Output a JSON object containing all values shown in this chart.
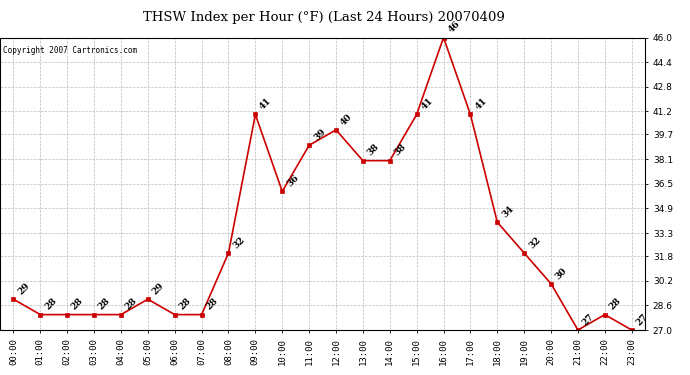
{
  "title": "THSW Index per Hour (°F) (Last 24 Hours) 20070409",
  "copyright": "Copyright 2007 Cartronics.com",
  "hours": [
    "00:00",
    "01:00",
    "02:00",
    "03:00",
    "04:00",
    "05:00",
    "06:00",
    "07:00",
    "08:00",
    "09:00",
    "10:00",
    "11:00",
    "12:00",
    "13:00",
    "14:00",
    "15:00",
    "16:00",
    "17:00",
    "18:00",
    "19:00",
    "20:00",
    "21:00",
    "22:00",
    "23:00"
  ],
  "values": [
    29,
    28,
    28,
    28,
    28,
    29,
    28,
    28,
    32,
    41,
    36,
    39,
    40,
    38,
    38,
    41,
    46,
    41,
    34,
    32,
    30,
    27,
    28,
    27
  ],
  "ylim_min": 27.0,
  "ylim_max": 46.0,
  "yticks": [
    27.0,
    28.6,
    30.2,
    31.8,
    33.3,
    34.9,
    36.5,
    38.1,
    39.7,
    41.2,
    42.8,
    44.4,
    46.0
  ],
  "line_color": "#cc0000",
  "marker_color": "#cc0000",
  "bg_color": "#ffffff",
  "grid_color": "#bbbbbb",
  "title_fontsize": 9.5,
  "tick_fontsize": 6.5,
  "annotation_fontsize": 6.5,
  "copyright_fontsize": 5.5
}
